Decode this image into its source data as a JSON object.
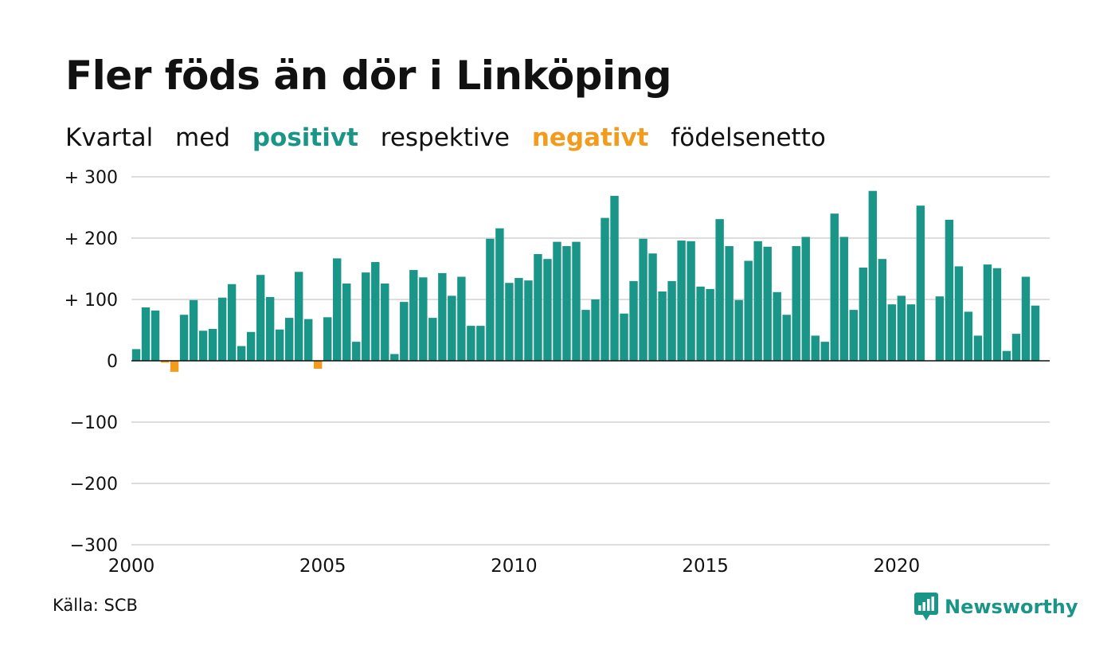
{
  "title": "Fler föds än dör i Linköping",
  "subtitle": {
    "part1": "Kvartal",
    "part2": "med",
    "positive_word": "positivt",
    "part3": "respektive",
    "negative_word": "negativt",
    "part4": "födelsenetto"
  },
  "source": "Källa: SCB",
  "brand": {
    "name": "Newsworthy",
    "icon": "newsworthy-logo-icon"
  },
  "colors": {
    "positive": "#1a9688",
    "negative": "#f29b1d",
    "grid": "#dddddd",
    "text": "#111111"
  },
  "chart_data": {
    "type": "bar",
    "ylim": [
      -300,
      300
    ],
    "yticks": [
      300,
      200,
      100,
      0,
      -100,
      -200,
      -300
    ],
    "ytick_labels": [
      "+ 300",
      "+ 200",
      "+ 100",
      "0",
      "−100",
      "−200",
      "−300"
    ],
    "xticks": [
      2000,
      2005,
      2010,
      2015,
      2020
    ],
    "xtick_labels": [
      "2000",
      "2005",
      "2010",
      "2015",
      "2020"
    ],
    "x_start": 2000,
    "x_end": 2024,
    "quarter_start": 2000.0,
    "quarter_step": 0.25,
    "values": [
      19,
      87,
      82,
      -3,
      -18,
      75,
      99,
      49,
      52,
      103,
      125,
      24,
      47,
      140,
      104,
      51,
      70,
      145,
      68,
      -13,
      71,
      167,
      126,
      31,
      144,
      161,
      126,
      11,
      96,
      148,
      136,
      70,
      143,
      106,
      137,
      57,
      57,
      199,
      216,
      127,
      135,
      131,
      174,
      166,
      194,
      187,
      194,
      83,
      100,
      233,
      269,
      77,
      130,
      199,
      175,
      113,
      130,
      196,
      195,
      121,
      117,
      231,
      187,
      99,
      163,
      195,
      186,
      112,
      75,
      187,
      202,
      41,
      31,
      240,
      202,
      83,
      152,
      277,
      166,
      92,
      106,
      92,
      253,
      0,
      105,
      230,
      154,
      80,
      41,
      157,
      151,
      16,
      44,
      137,
      90
    ]
  }
}
